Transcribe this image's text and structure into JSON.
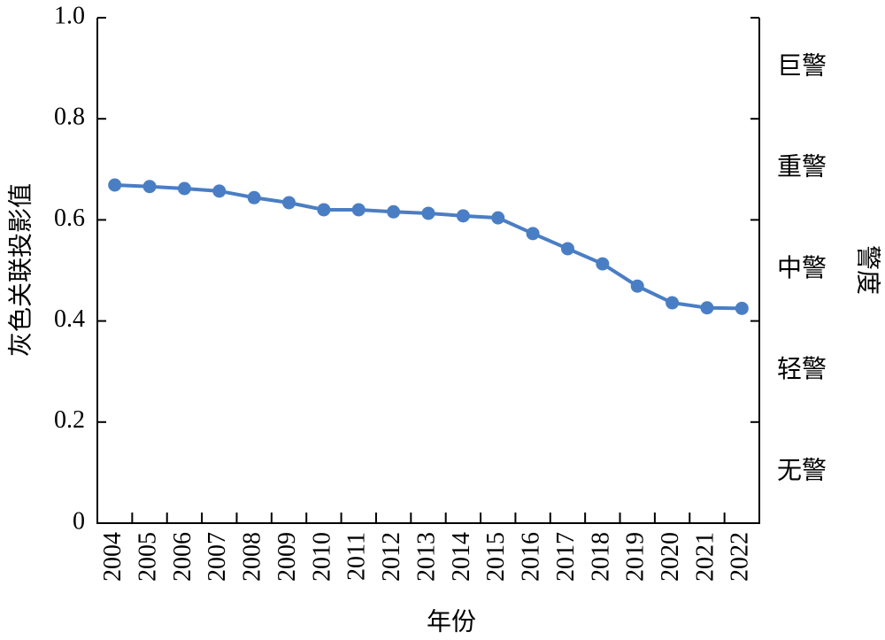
{
  "chart_data": {
    "type": "line",
    "categories": [
      "2004",
      "2005",
      "2006",
      "2007",
      "2008",
      "2009",
      "2010",
      "2011",
      "2012",
      "2013",
      "2014",
      "2015",
      "2016",
      "2017",
      "2018",
      "2019",
      "2020",
      "2021",
      "2022"
    ],
    "values": [
      0.669,
      0.666,
      0.662,
      0.657,
      0.644,
      0.634,
      0.62,
      0.62,
      0.616,
      0.613,
      0.608,
      0.604,
      0.573,
      0.543,
      0.513,
      0.469,
      0.436,
      0.426,
      0.425
    ],
    "color": "#4a7ec4",
    "x_label": "年份",
    "y_label": "灰色关联投影值",
    "y2_label": "警度",
    "ylim": [
      0,
      1
    ],
    "yticks": [
      0,
      0.2,
      0.4,
      0.6,
      0.8,
      {
        "value": 1,
        "label": "1.0"
      }
    ],
    "y2lim": [
      0,
      1
    ],
    "y2ticks": [
      {
        "value": 0.1,
        "label": "无警"
      },
      {
        "value": 0.3,
        "label": "轻警"
      },
      {
        "value": 0.5,
        "label": "中警"
      },
      {
        "value": 0.7,
        "label": "重警"
      },
      {
        "value": 0.9,
        "label": "巨警"
      }
    ]
  }
}
